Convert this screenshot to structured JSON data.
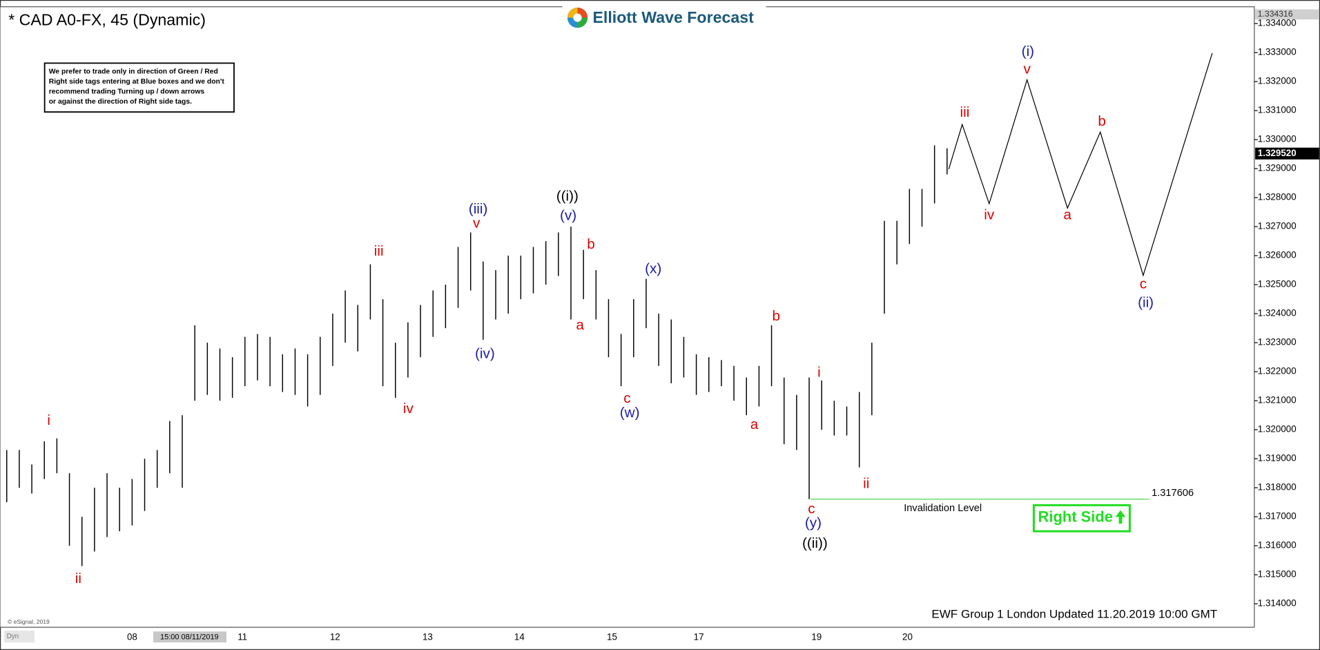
{
  "chart_data": {
    "type": "ohlc",
    "title": "* CAD A0-FX, 45 (Dynamic)",
    "watermark": "Elliott Wave Forecast",
    "note": [
      "We prefer to trade only in direction of Green / Red",
      "Right side tags entering at Blue boxes and we don't",
      "recommend trading Turning up / down arrows",
      "or against the direction of Right side tags."
    ],
    "copyright": "© eSignal, 2019",
    "dyn": "Dyn",
    "footer": "EWF Group 1 London Updated 11.20.2019 10:00 GMT",
    "ylim": [
      1.31319,
      1.33458
    ],
    "yticks": [
      {
        "value": 1.314,
        "label": "1.314000"
      },
      {
        "value": 1.315,
        "label": "1.315000"
      },
      {
        "value": 1.316,
        "label": "1.316000"
      },
      {
        "value": 1.317,
        "label": "1.317000"
      },
      {
        "value": 1.318,
        "label": "1.318000"
      },
      {
        "value": 1.319,
        "label": "1.319000"
      },
      {
        "value": 1.32,
        "label": "1.320000"
      },
      {
        "value": 1.321,
        "label": "1.321000"
      },
      {
        "value": 1.322,
        "label": "1.322000"
      },
      {
        "value": 1.323,
        "label": "1.323000"
      },
      {
        "value": 1.324,
        "label": "1.324000"
      },
      {
        "value": 1.325,
        "label": "1.325000"
      },
      {
        "value": 1.326,
        "label": "1.326000"
      },
      {
        "value": 1.327,
        "label": "1.327000"
      },
      {
        "value": 1.328,
        "label": "1.328000"
      },
      {
        "value": 1.329,
        "label": "1.329000"
      },
      {
        "value": 1.33,
        "label": "1.330000"
      },
      {
        "value": 1.331,
        "label": "1.331000"
      },
      {
        "value": 1.332,
        "label": "1.332000"
      },
      {
        "value": 1.333,
        "label": "1.333000"
      },
      {
        "value": 1.334,
        "label": "1.334000"
      }
    ],
    "high_label": 1.334316,
    "last_price": {
      "value": 1.32952,
      "label": "1.329520"
    },
    "categories": [
      "08",
      "15:00 08/11/2019",
      "11",
      "12",
      "13",
      "14",
      "15",
      "17",
      "19",
      "20"
    ],
    "bars": {
      "color": "#000000",
      "high": [
        1.3193,
        1.3193,
        1.3188,
        1.3196,
        1.3197,
        1.3185,
        1.317,
        1.318,
        1.3185,
        1.318,
        1.3183,
        1.319,
        1.3193,
        1.3203,
        1.3205,
        1.3236,
        1.323,
        1.3228,
        1.3225,
        1.3232,
        1.3233,
        1.3232,
        1.3226,
        1.3228,
        1.3226,
        1.3232,
        1.324,
        1.3248,
        1.3243,
        1.3257,
        1.3245,
        1.323,
        1.3237,
        1.3243,
        1.3248,
        1.325,
        1.3263,
        1.3268,
        1.3258,
        1.3255,
        1.326,
        1.326,
        1.3263,
        1.3265,
        1.3268,
        1.327,
        1.3262,
        1.3255,
        1.3245,
        1.3233,
        1.3245,
        1.3252,
        1.324,
        1.3238,
        1.3232,
        1.3226,
        1.3225,
        1.3224,
        1.3222,
        1.3218,
        1.3222,
        1.3236,
        1.3218,
        1.3212,
        1.3218,
        1.3217,
        1.321,
        1.3208,
        1.3213,
        1.323,
        1.3272,
        1.3272,
        1.3283,
        1.3283,
        1.3298,
        1.3297
      ],
      "low": [
        1.3175,
        1.318,
        1.3178,
        1.3183,
        1.3185,
        1.316,
        1.3153,
        1.3158,
        1.3163,
        1.3165,
        1.3167,
        1.3172,
        1.318,
        1.3185,
        1.318,
        1.321,
        1.3212,
        1.321,
        1.3211,
        1.3215,
        1.3217,
        1.3215,
        1.3213,
        1.3212,
        1.3208,
        1.3212,
        1.3222,
        1.323,
        1.3227,
        1.3238,
        1.3215,
        1.3211,
        1.3218,
        1.3225,
        1.3232,
        1.3235,
        1.3242,
        1.3248,
        1.3231,
        1.3238,
        1.324,
        1.3245,
        1.3247,
        1.325,
        1.3253,
        1.3238,
        1.3245,
        1.3238,
        1.3225,
        1.3215,
        1.3225,
        1.3235,
        1.3222,
        1.3216,
        1.3218,
        1.3212,
        1.3213,
        1.3215,
        1.321,
        1.3205,
        1.3208,
        1.3215,
        1.3195,
        1.3193,
        1.317606,
        1.32,
        1.3198,
        1.3198,
        1.3187,
        1.3205,
        1.324,
        1.3257,
        1.3264,
        1.327,
        1.3278,
        1.3288
      ]
    },
    "projection": {
      "color": "#000000",
      "values": [
        1.32898,
        1.33052,
        1.32779,
        1.33206,
        1.32764,
        1.33026,
        1.32532,
        1.33298
      ]
    },
    "invalidation": {
      "value": 1.317606,
      "label": "Invalidation Level",
      "color": "#66dd66"
    },
    "right_side": {
      "text": "Right Side",
      "color": "#22dd22"
    },
    "waves": [
      {
        "text": "i",
        "color": "#dd0000"
      },
      {
        "text": "ii",
        "color": "#dd0000"
      },
      {
        "text": "iii",
        "color": "#dd0000"
      },
      {
        "text": "iv",
        "color": "#dd0000"
      },
      {
        "text": "(iii)",
        "color": "#1a1aaa"
      },
      {
        "text": "v",
        "color": "#dd0000"
      },
      {
        "text": "(iv)",
        "color": "#1a1aaa"
      },
      {
        "text": "((i))",
        "color": "#000000"
      },
      {
        "text": "(v)",
        "color": "#1a1aaa"
      },
      {
        "text": "b",
        "color": "#dd0000"
      },
      {
        "text": "a",
        "color": "#dd0000"
      },
      {
        "text": "c",
        "color": "#dd0000"
      },
      {
        "text": "(w)",
        "color": "#1a1aaa"
      },
      {
        "text": "(x)",
        "color": "#1a1aaa"
      },
      {
        "text": "b",
        "color": "#dd0000"
      },
      {
        "text": "a",
        "color": "#dd0000"
      },
      {
        "text": "i",
        "color": "#dd0000"
      },
      {
        "text": "ii",
        "color": "#dd0000"
      },
      {
        "text": "c",
        "color": "#dd0000"
      },
      {
        "text": "(y)",
        "color": "#1a1aaa"
      },
      {
        "text": "((ii))",
        "color": "#000000"
      },
      {
        "text": "iii",
        "color": "#dd0000"
      },
      {
        "text": "iv",
        "color": "#dd0000"
      },
      {
        "text": "(i)",
        "color": "#1a1aaa"
      },
      {
        "text": "v",
        "color": "#dd0000"
      },
      {
        "text": "a",
        "color": "#dd0000"
      },
      {
        "text": "b",
        "color": "#dd0000"
      },
      {
        "text": "c",
        "color": "#dd0000"
      },
      {
        "text": "(ii)",
        "color": "#1a1aaa"
      }
    ]
  }
}
